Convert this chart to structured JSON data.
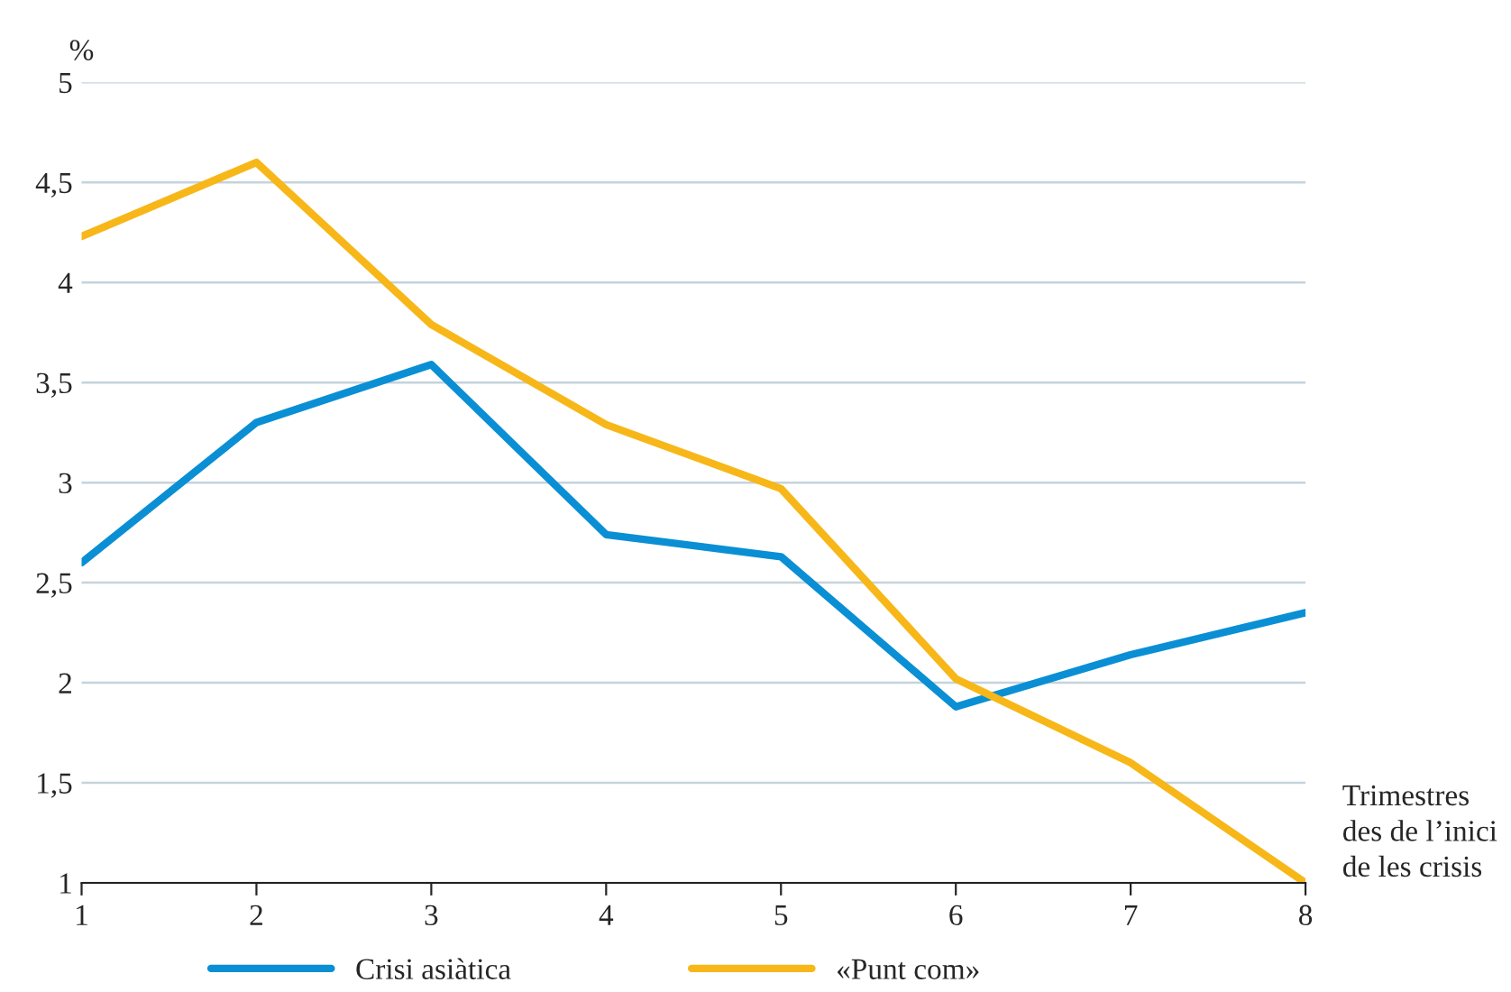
{
  "chart_data": {
    "type": "line",
    "ylabel": "%",
    "xlabel": "Trimestres\ndes de l’inici\nde les crisis",
    "x": [
      1,
      2,
      3,
      4,
      5,
      6,
      7,
      8
    ],
    "series": [
      {
        "name": "Crisi asiàtica",
        "color": "#0a8fd4",
        "values": [
          2.6,
          3.3,
          3.59,
          2.74,
          2.63,
          1.88,
          2.14,
          2.35
        ]
      },
      {
        "name": "«Punt com»",
        "color": "#f7b718",
        "values": [
          4.23,
          4.6,
          3.79,
          3.29,
          2.97,
          2.02,
          1.6,
          1.0
        ]
      }
    ],
    "xlim": [
      1,
      8
    ],
    "xticks": [
      1,
      2,
      3,
      4,
      5,
      6,
      7,
      8
    ],
    "ylim": [
      1,
      5
    ],
    "yticks": [
      1,
      {
        "value": 1.5,
        "label": "1,5"
      },
      2,
      {
        "value": 2.5,
        "label": "2,5"
      },
      3,
      {
        "value": 3.5,
        "label": "3,5"
      },
      4,
      {
        "value": 4.5,
        "label": "4,5"
      },
      5
    ],
    "grid": "y",
    "legend": "bottom",
    "marker": "none",
    "line_style": "solid"
  }
}
